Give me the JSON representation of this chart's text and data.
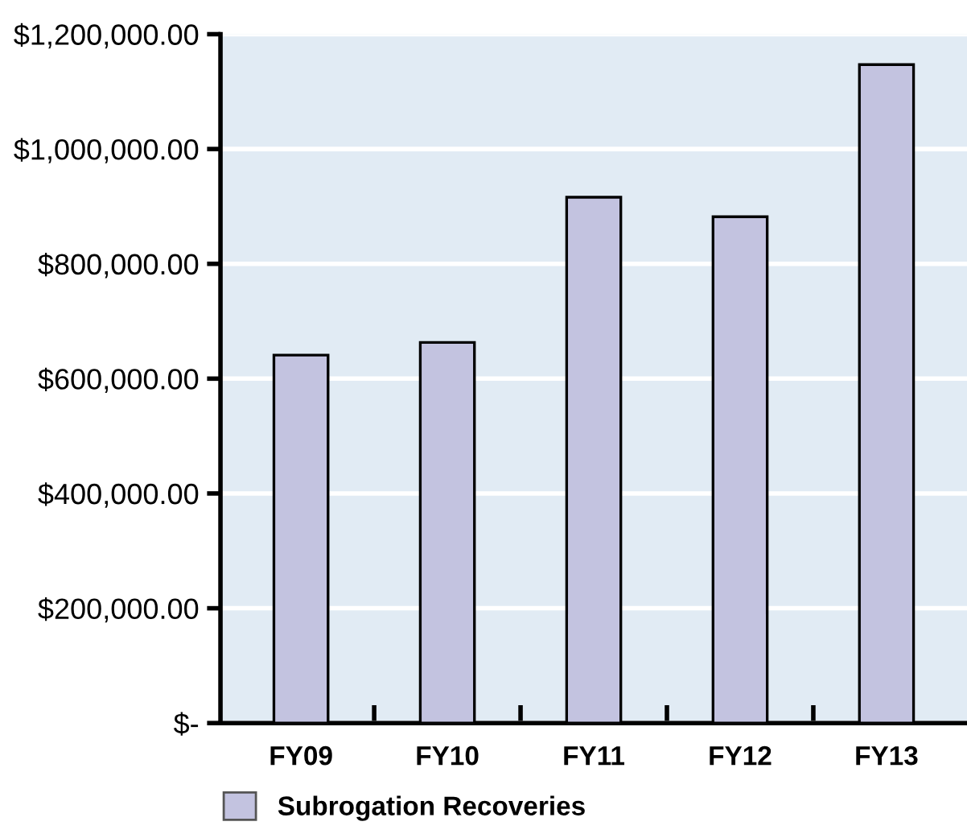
{
  "chart_data": {
    "type": "bar",
    "categories": [
      "FY09",
      "FY10",
      "FY11",
      "FY12",
      "FY13"
    ],
    "series": [
      {
        "name": "Subrogation Recoveries",
        "color": "#c3c3e0",
        "values": [
          641000,
          663000,
          916000,
          882000,
          1147000
        ]
      }
    ],
    "ylim": [
      0,
      1200000
    ],
    "yticks": [
      {
        "value": 0,
        "label": "$-"
      },
      {
        "value": 200000,
        "label": "$200,000.00"
      },
      {
        "value": 400000,
        "label": "$400,000.00"
      },
      {
        "value": 600000,
        "label": "$600,000.00"
      },
      {
        "value": 800000,
        "label": "$800,000.00"
      },
      {
        "value": 1000000,
        "label": "$1,000,000.00"
      },
      {
        "value": 1200000,
        "label": "$1,200,000.00"
      }
    ],
    "grid": "y",
    "legend": "bottom left"
  }
}
